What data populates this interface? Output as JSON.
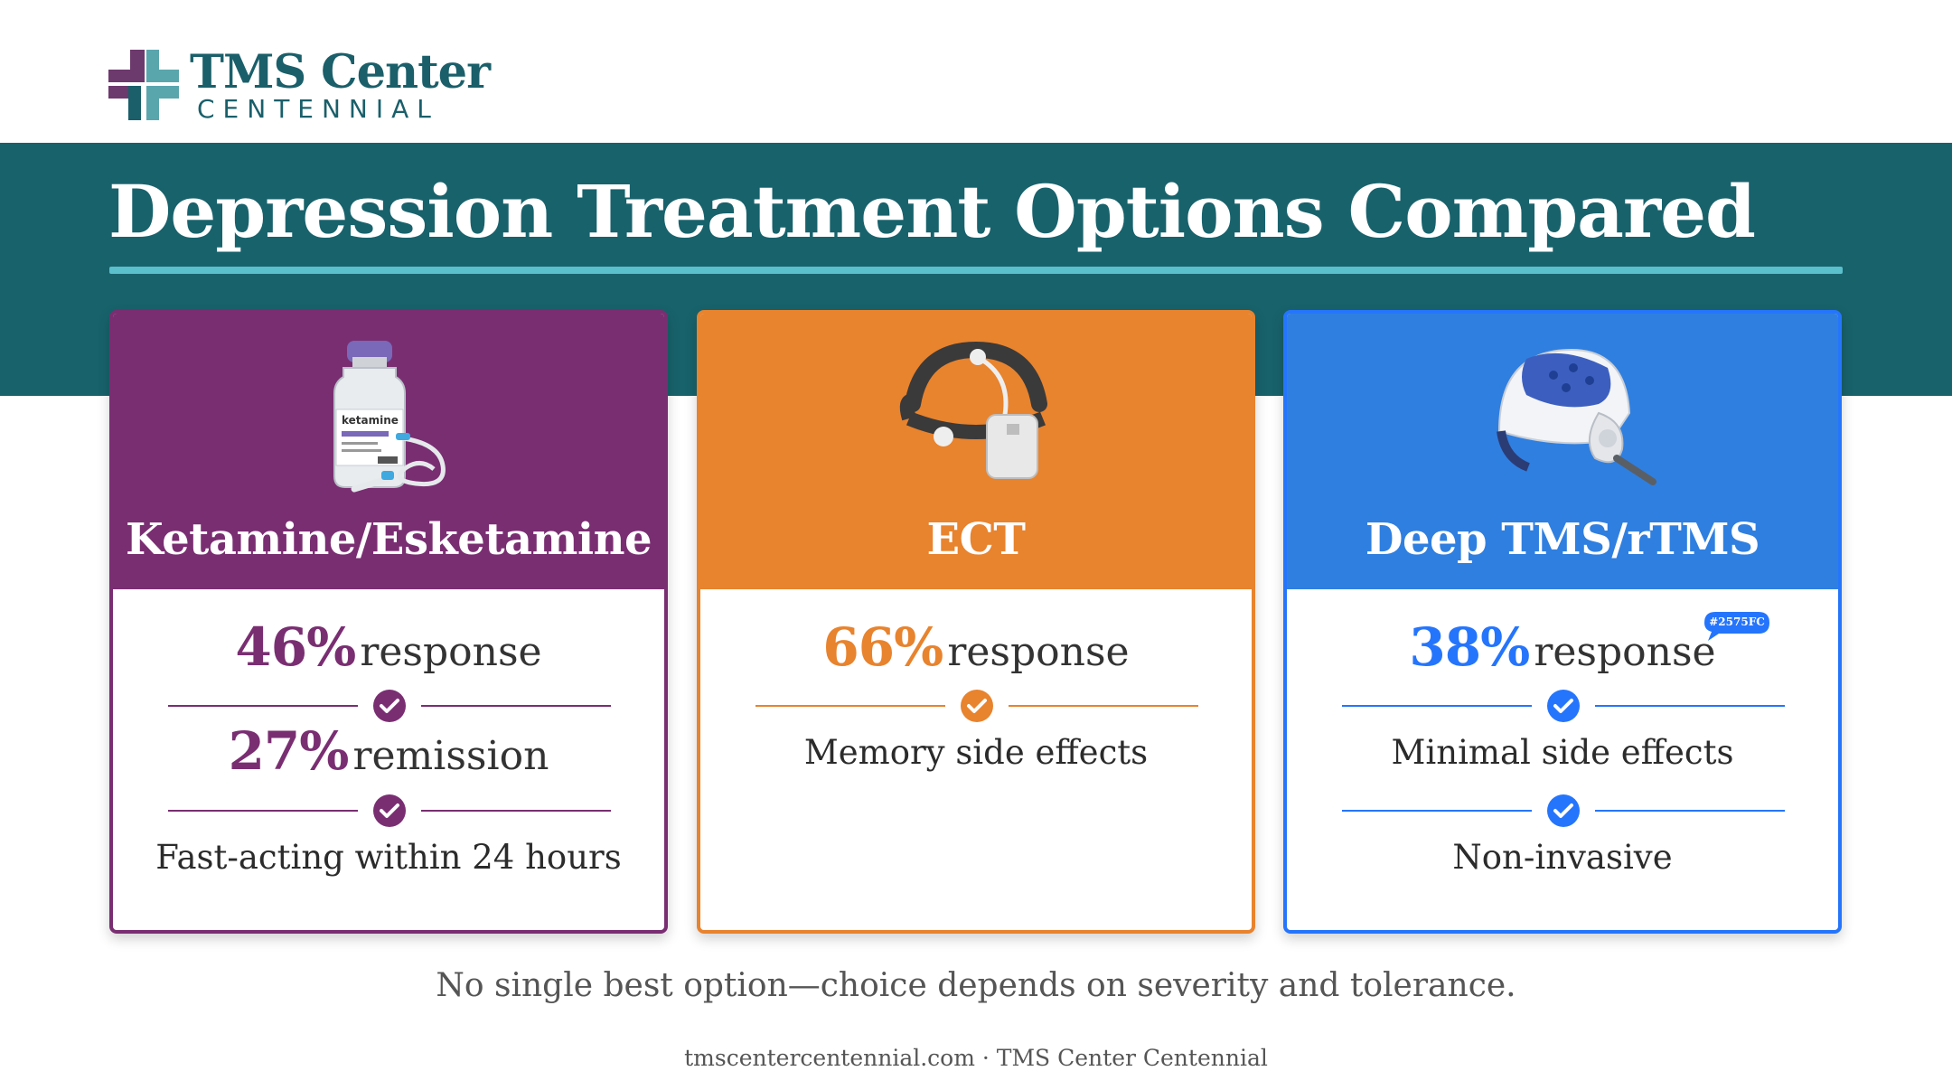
{
  "brand": {
    "name": "TMS Center",
    "subname": "CENTENNIAL"
  },
  "title": "Depression Treatment Options Compared",
  "colors": {
    "banner": "#18626C",
    "ketamine": "#7A2E72",
    "ect": "#E8832E",
    "tms": "#2575FC"
  },
  "cards": [
    {
      "title": "Ketamine/Esketamine",
      "icon": "ketamine-vial-icon",
      "vial_label": "ketamine",
      "stat1_value": "46%",
      "stat1_label": "response",
      "stat2_value": "27%",
      "stat2_label": "remission",
      "note": "Fast-acting within 24 hours"
    },
    {
      "title": "ECT",
      "icon": "ect-headband-icon",
      "stat1_value": "66%",
      "stat1_label": "response",
      "note": "Memory side effects"
    },
    {
      "title": "Deep TMS/rTMS",
      "icon": "tms-helmet-icon",
      "stat1_value": "38%",
      "stat1_label": "response",
      "tag": "#2575FC",
      "note1": "Minimal side effects",
      "note2": "Non-invasive"
    }
  ],
  "footnote": "No single best option—choice depends on severity and tolerance.",
  "credit": "tmscentercentennial.com · TMS Center Centennial"
}
